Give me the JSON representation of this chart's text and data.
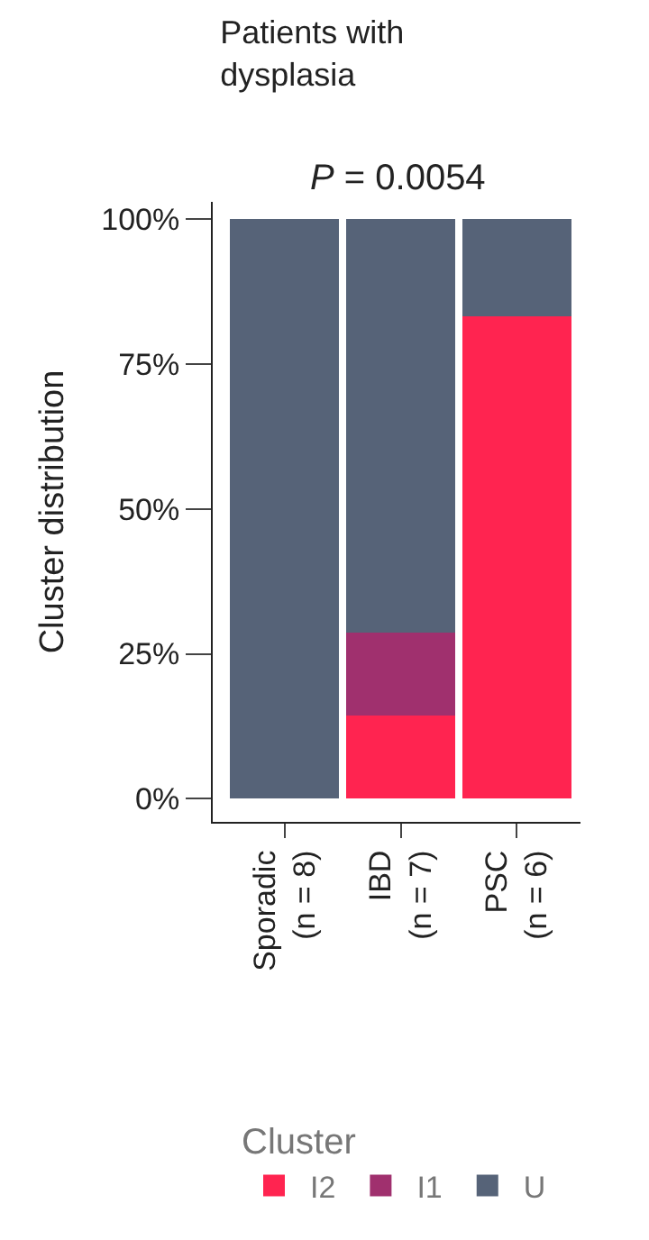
{
  "chart_data": {
    "type": "bar",
    "title": "Patients with\ndysplasia",
    "ylabel": "Cluster distribution",
    "legend_title": "Cluster",
    "annotations": [
      "P = 0.0054"
    ],
    "categories": [
      "Sporadic\n(n = 8)",
      "IBD\n(n = 7)",
      "PSC\n(n = 6)"
    ],
    "stacked": true,
    "series": [
      {
        "name": "I2",
        "color": "#ff2450",
        "values": [
          0,
          14.3,
          83.3
        ]
      },
      {
        "name": "I1",
        "color": "#a0306e",
        "values": [
          0,
          14.3,
          0
        ]
      },
      {
        "name": "U",
        "color": "#566378",
        "values": [
          100,
          71.4,
          16.7
        ]
      }
    ],
    "ylim": [
      -4,
      103
    ],
    "yticks": [
      {
        "value": 0,
        "label": "0%"
      },
      {
        "value": 25,
        "label": "25%"
      },
      {
        "value": 50,
        "label": "50%"
      },
      {
        "value": 75,
        "label": "75%"
      },
      {
        "value": 100,
        "label": "100%"
      }
    ],
    "legend": "bottom"
  }
}
